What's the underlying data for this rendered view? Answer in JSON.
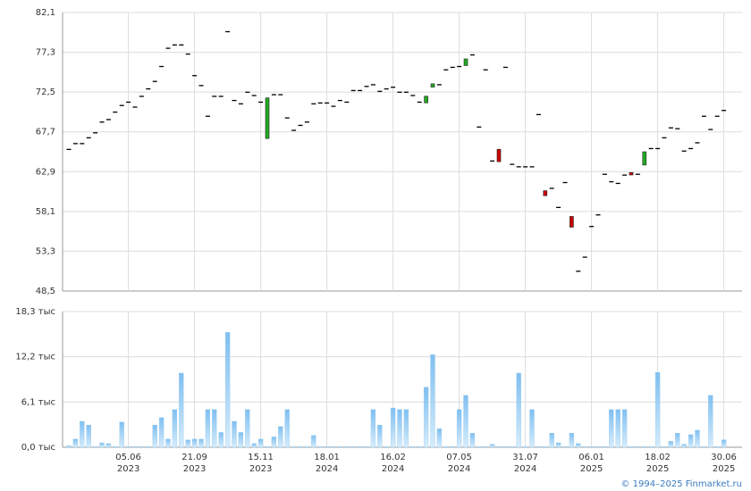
{
  "chart_data": [
    {
      "type": "candlestick",
      "categories": [
        null,
        null,
        null,
        null,
        null,
        null,
        null,
        null,
        null,
        "05.06",
        null,
        null,
        null,
        null,
        null,
        null,
        null,
        null,
        null,
        "21.09",
        null,
        null,
        null,
        null,
        null,
        null,
        null,
        null,
        null,
        "15.11",
        null,
        null,
        null,
        null,
        null,
        null,
        null,
        null,
        null,
        "18.01",
        null,
        null,
        null,
        null,
        null,
        null,
        null,
        null,
        null,
        "16.02",
        null,
        null,
        null,
        null,
        null,
        null,
        null,
        null,
        null,
        "07.05",
        null,
        null,
        null,
        null,
        null,
        null,
        null,
        null,
        null,
        "31.07",
        null,
        null,
        null,
        null,
        null,
        null,
        null,
        null,
        null,
        "06.01",
        null,
        null,
        null,
        null,
        null,
        null,
        null,
        null,
        null,
        "18.02",
        null,
        null,
        null,
        null,
        null,
        null,
        null,
        null,
        null,
        "30.06"
      ],
      "category_years": [
        null,
        null,
        null,
        null,
        null,
        null,
        null,
        null,
        null,
        "2023",
        null,
        null,
        null,
        null,
        null,
        null,
        null,
        null,
        null,
        "2023",
        null,
        null,
        null,
        null,
        null,
        null,
        null,
        null,
        null,
        "2023",
        null,
        null,
        null,
        null,
        null,
        null,
        null,
        null,
        null,
        "2024",
        null,
        null,
        null,
        null,
        null,
        null,
        null,
        null,
        null,
        "2024",
        null,
        null,
        null,
        null,
        null,
        null,
        null,
        null,
        null,
        "2024",
        null,
        null,
        null,
        null,
        null,
        null,
        null,
        null,
        null,
        "2024",
        null,
        null,
        null,
        null,
        null,
        null,
        null,
        null,
        null,
        "2025",
        null,
        null,
        null,
        null,
        null,
        null,
        null,
        null,
        null,
        "2025",
        null,
        null,
        null,
        null,
        null,
        null,
        null,
        null,
        null,
        "2025"
      ],
      "open": [
        65.6,
        66.3,
        66.3,
        67.0,
        67.6,
        68.9,
        69.2,
        70.1,
        70.9,
        71.3,
        70.7,
        72.0,
        72.9,
        73.8,
        75.6,
        77.8,
        78.2,
        78.2,
        77.1,
        74.5,
        73.3,
        69.6,
        72.0,
        72.0,
        79.8,
        71.5,
        71.1,
        72.5,
        72.1,
        71.3,
        66.9,
        72.2,
        72.2,
        69.4,
        67.9,
        68.5,
        68.9,
        71.1,
        71.2,
        71.2,
        70.8,
        71.5,
        71.3,
        72.7,
        72.7,
        73.2,
        73.4,
        72.6,
        72.9,
        73.1,
        72.5,
        72.5,
        72.1,
        71.3,
        71.2,
        73.1,
        73.4,
        75.2,
        75.5,
        75.6,
        75.7,
        77.0,
        68.3,
        75.2,
        64.2,
        65.6,
        75.5,
        63.8,
        63.5,
        63.5,
        63.5,
        69.8,
        60.6,
        60.9,
        58.6,
        61.6,
        57.5,
        50.9,
        52.6,
        56.3,
        57.7,
        62.6,
        61.7,
        61.5,
        62.5,
        62.8,
        62.6,
        63.7,
        65.7,
        65.7,
        67.0,
        68.2,
        68.1,
        65.4,
        65.7,
        66.4,
        69.6,
        68.0,
        69.6,
        70.3
      ],
      "close": [
        65.6,
        66.3,
        66.3,
        67.0,
        67.6,
        68.9,
        69.2,
        70.1,
        70.9,
        71.3,
        70.7,
        72.0,
        72.9,
        73.8,
        75.6,
        77.8,
        78.2,
        78.2,
        77.1,
        74.5,
        73.3,
        69.6,
        72.0,
        72.0,
        79.8,
        71.5,
        71.1,
        72.5,
        72.1,
        71.3,
        71.8,
        72.2,
        72.2,
        69.4,
        67.9,
        68.5,
        68.9,
        71.1,
        71.2,
        71.2,
        70.8,
        71.5,
        71.3,
        72.7,
        72.7,
        73.2,
        73.4,
        72.6,
        72.9,
        73.1,
        72.5,
        72.5,
        72.1,
        71.3,
        72.0,
        73.5,
        73.4,
        75.2,
        75.5,
        75.6,
        76.5,
        77.0,
        68.3,
        75.2,
        64.2,
        64.1,
        75.5,
        63.8,
        63.5,
        63.5,
        63.5,
        69.8,
        60.0,
        60.9,
        58.6,
        61.6,
        56.2,
        50.9,
        52.6,
        56.3,
        57.7,
        62.6,
        61.7,
        61.5,
        62.5,
        62.5,
        62.6,
        65.3,
        65.7,
        65.7,
        67.0,
        68.2,
        68.1,
        65.4,
        65.7,
        66.4,
        69.6,
        68.0,
        69.6,
        70.3
      ],
      "up_color": "#22aa22",
      "down_color": "#cc0000",
      "flat_color": "#000000",
      "ylim": [
        48.5,
        82.1
      ],
      "yticks": [
        {
          "value": 48.5,
          "label": "48,5"
        },
        {
          "value": 53.3,
          "label": "53,3"
        },
        {
          "value": 58.1,
          "label": "58,1"
        },
        {
          "value": 62.9,
          "label": "62,9"
        },
        {
          "value": 67.7,
          "label": "67,7"
        },
        {
          "value": 72.5,
          "label": "72,5"
        },
        {
          "value": 77.3,
          "label": "77,3"
        },
        {
          "value": 82.1,
          "label": "82,1"
        }
      ],
      "grid": true
    },
    {
      "type": "bar",
      "values": [
        0.2,
        1.1,
        3.5,
        3.0,
        0.1,
        0.6,
        0.5,
        0.1,
        3.4,
        0.1,
        0.1,
        0.1,
        0.1,
        3.0,
        4.0,
        1.1,
        5.1,
        10.0,
        1.0,
        1.1,
        1.1,
        5.1,
        5.1,
        2.0,
        15.5,
        3.5,
        2.0,
        5.1,
        0.5,
        1.1,
        0.1,
        1.4,
        2.8,
        5.1,
        0.1,
        0.1,
        0.1,
        1.6,
        0.1,
        0.1,
        0.1,
        0.1,
        0.1,
        0.1,
        0.1,
        0.1,
        5.1,
        3.0,
        0.1,
        5.3,
        5.1,
        5.1,
        0.1,
        0.1,
        8.1,
        12.5,
        2.5,
        0.1,
        0.1,
        5.1,
        7.0,
        1.9,
        0.1,
        0.1,
        0.4,
        0.1,
        0.1,
        0.1,
        10.0,
        0.1,
        5.1,
        0.1,
        0.1,
        1.9,
        0.6,
        0.1,
        1.9,
        0.5,
        0.1,
        0.1,
        0.1,
        0.1,
        5.1,
        5.1,
        5.1,
        0.1,
        0.1,
        0.1,
        0.1,
        10.1,
        0.1,
        0.8,
        1.9,
        0.4,
        1.7,
        2.3,
        0.1,
        7.0,
        0.1,
        1.0
      ],
      "color": "#8ec8f0",
      "ylim": [
        0,
        18.3
      ],
      "yticks": [
        {
          "value": 0,
          "label": "0,0 тыс"
        },
        {
          "value": 6.1,
          "label": "6,1 тыс"
        },
        {
          "value": 12.2,
          "label": "12,2 тыс"
        },
        {
          "value": 18.3,
          "label": "18,3 тыс"
        }
      ],
      "grid": true
    }
  ],
  "footer": "© 1994–2025 Finmarket.ru"
}
